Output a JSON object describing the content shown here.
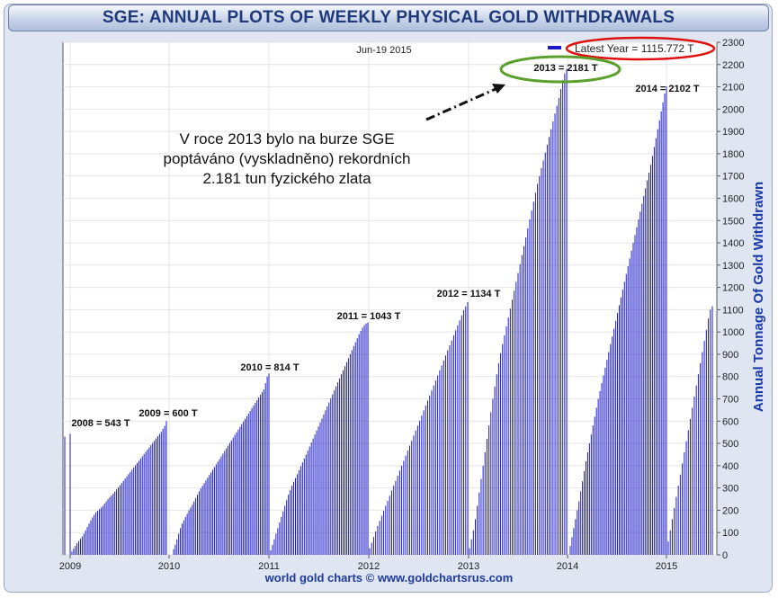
{
  "header": {
    "title": "SGE: ANNUAL PLOTS OF WEEKLY PHYSICAL GOLD WITHDRAWALS",
    "date": "Jun-19  2015"
  },
  "legend": {
    "text": "Latest Year = 1115.772 T",
    "color": "#1a1ac8",
    "highlight_color": "#e01010",
    "placement": "top-right"
  },
  "annotation": {
    "lines": [
      "V roce 2013 bylo na burze SGE",
      "poptáváno (vyskladněno) rekordních",
      "2.181 tun fyzického zlata"
    ],
    "target_year": "2013",
    "highlight_color": "#5aa02c"
  },
  "footer": {
    "text": "world gold charts © www.goldchartsrus.com"
  },
  "chart_data": {
    "type": "bar",
    "ylabel": "Annual Tonnage Of Gold Withdrawn",
    "ylim": [
      0,
      2300
    ],
    "yticks": [
      0,
      100,
      200,
      300,
      400,
      500,
      600,
      700,
      800,
      900,
      1000,
      1100,
      1200,
      1300,
      1400,
      1500,
      1600,
      1700,
      1800,
      1900,
      2000,
      2100,
      2200,
      2300
    ],
    "y_axis_position": "right",
    "x_tick_labels": [
      "2009",
      "2010",
      "2011",
      "2012",
      "2013",
      "2014",
      "2015"
    ],
    "bar_color": "#1a1ac8",
    "grid": true,
    "series": [
      {
        "year": "2008",
        "label": "2008 = 543 T",
        "values": [
          530,
          543
        ]
      },
      {
        "year": "2009",
        "label": "2009 = 600 T",
        "values": [
          5,
          15,
          28,
          40,
          52,
          62,
          72,
          82,
          95,
          110,
          125,
          140,
          155,
          168,
          180,
          190,
          198,
          205,
          212,
          220,
          230,
          240,
          250,
          258,
          266,
          275,
          284,
          293,
          302,
          312,
          322,
          332,
          342,
          352,
          362,
          372,
          382,
          392,
          402,
          412,
          422,
          432,
          442,
          452,
          462,
          472,
          482,
          492,
          502,
          512,
          522,
          532,
          542,
          552,
          565,
          578,
          600
        ]
      },
      {
        "year": "2010",
        "label": "2010 = 814 T",
        "values": [
          25,
          45,
          70,
          95,
          120,
          140,
          155,
          170,
          185,
          200,
          212,
          225,
          240,
          255,
          270,
          285,
          298,
          310,
          322,
          334,
          346,
          358,
          370,
          382,
          394,
          406,
          418,
          430,
          442,
          454,
          466,
          478,
          490,
          502,
          514,
          526,
          538,
          550,
          562,
          574,
          586,
          598,
          610,
          622,
          634,
          646,
          658,
          670,
          682,
          694,
          706,
          718,
          730,
          742,
          770,
          800,
          814
        ]
      },
      {
        "year": "2011",
        "label": "2011 = 1043 T",
        "values": [
          20,
          45,
          70,
          95,
          120,
          145,
          170,
          195,
          220,
          245,
          270,
          290,
          310,
          328,
          345,
          362,
          380,
          398,
          415,
          432,
          450,
          468,
          486,
          504,
          522,
          540,
          558,
          576,
          594,
          612,
          630,
          648,
          666,
          684,
          702,
          720,
          738,
          756,
          774,
          792,
          810,
          828,
          846,
          864,
          882,
          900,
          918,
          936,
          954,
          972,
          990,
          1005,
          1020,
          1030,
          1038,
          1043
        ]
      },
      {
        "year": "2012",
        "label": "2012 = 1134 T",
        "values": [
          30,
          55,
          80,
          105,
          130,
          152,
          175,
          198,
          220,
          242,
          265,
          288,
          310,
          332,
          355,
          378,
          400,
          422,
          445,
          468,
          490,
          512,
          535,
          558,
          580,
          602,
          625,
          648,
          670,
          692,
          715,
          738,
          760,
          782,
          805,
          828,
          850,
          872,
          895,
          918,
          940,
          962,
          985,
          1008,
          1030,
          1052,
          1075,
          1098,
          1115,
          1134
        ]
      },
      {
        "year": "2013",
        "label": "2013 = 2181 T",
        "values": [
          30,
          70,
          110,
          160,
          220,
          280,
          340,
          400,
          460,
          520,
          580,
          640,
          700,
          755,
          810,
          860,
          905,
          945,
          985,
          1025,
          1065,
          1105,
          1145,
          1185,
          1225,
          1265,
          1305,
          1345,
          1385,
          1425,
          1465,
          1505,
          1545,
          1585,
          1625,
          1665,
          1700,
          1735,
          1770,
          1805,
          1840,
          1875,
          1910,
          1945,
          1980,
          2015,
          2050,
          2090,
          2130,
          2160,
          2181
        ]
      },
      {
        "year": "2014",
        "label": "2014 = 2102 T",
        "values": [
          40,
          80,
          120,
          160,
          200,
          240,
          285,
          330,
          375,
          420,
          460,
          500,
          540,
          580,
          620,
          660,
          700,
          735,
          770,
          805,
          840,
          875,
          910,
          945,
          980,
          1015,
          1050,
          1085,
          1120,
          1155,
          1190,
          1225,
          1260,
          1295,
          1330,
          1365,
          1400,
          1435,
          1470,
          1505,
          1540,
          1575,
          1610,
          1645,
          1680,
          1715,
          1750,
          1790,
          1830,
          1870,
          1910,
          1950,
          1990,
          2030,
          2070,
          2102
        ]
      },
      {
        "year": "2015",
        "label": "",
        "values": [
          60,
          110,
          160,
          210,
          260,
          310,
          360,
          410,
          460,
          510,
          560,
          610,
          660,
          710,
          760,
          810,
          860,
          910,
          960,
          1010,
          1060,
          1100,
          1115.772
        ]
      }
    ]
  }
}
